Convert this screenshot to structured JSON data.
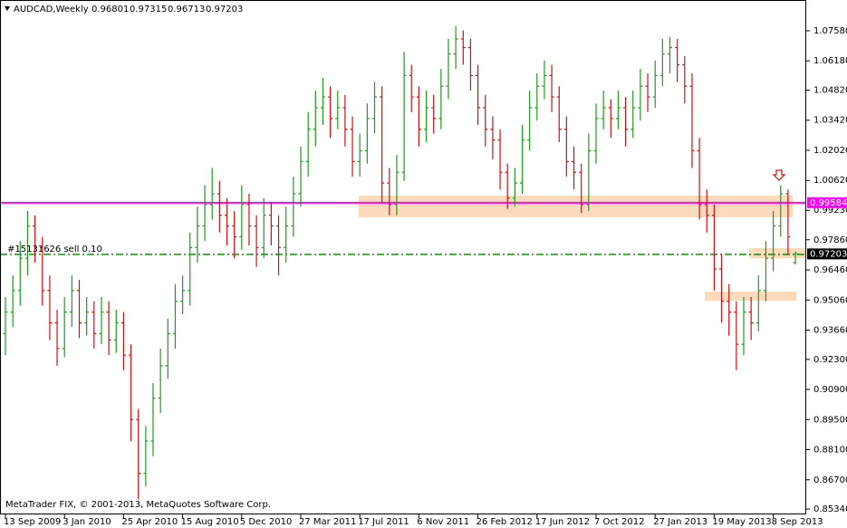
{
  "chart_data": {
    "type": "ohlc",
    "title": "AUDCAD,Weekly",
    "credit": "MetaTrader FIX, © 2001-2013, MetaQuotes Software Corp.",
    "categories": [
      "13 Sep 2009",
      null,
      null,
      null,
      null,
      null,
      null,
      null,
      "3 Jan 2010",
      null,
      null,
      null,
      null,
      null,
      null,
      null,
      "25 Apr 2010",
      null,
      null,
      null,
      null,
      null,
      null,
      null,
      "15 Aug 2010",
      null,
      null,
      null,
      null,
      null,
      null,
      null,
      "5 Dec 2010",
      null,
      null,
      null,
      null,
      null,
      null,
      null,
      "27 Mar 2011",
      null,
      null,
      null,
      null,
      null,
      null,
      null,
      "17 Jul 2011",
      null,
      null,
      null,
      null,
      null,
      null,
      null,
      "6 Nov 2011",
      null,
      null,
      null,
      null,
      null,
      null,
      null,
      "26 Feb 2012",
      null,
      null,
      null,
      null,
      null,
      null,
      null,
      "17 Jun 2012",
      null,
      null,
      null,
      null,
      null,
      null,
      null,
      "7 Oct 2012",
      null,
      null,
      null,
      null,
      null,
      null,
      null,
      "27 Jan 2013",
      null,
      null,
      null,
      null,
      null,
      null,
      null,
      "19 May 2013",
      null,
      null,
      null,
      null,
      null,
      null,
      null,
      "8 Sep 2013",
      null,
      null,
      null
    ],
    "open": [
      0.935,
      0.945,
      0.955,
      0.97,
      0.985,
      0.975,
      0.955,
      0.94,
      0.928,
      0.945,
      0.955,
      0.94,
      0.945,
      0.935,
      0.945,
      0.932,
      0.94,
      0.925,
      0.895,
      0.87,
      0.885,
      0.905,
      0.92,
      0.935,
      0.95,
      0.955,
      0.975,
      0.985,
      0.995,
      1.0,
      0.99,
      0.985,
      0.98,
      0.995,
      0.985,
      0.975,
      0.99,
      0.985,
      0.975,
      0.985,
      1.0,
      1.015,
      1.03,
      1.04,
      1.045,
      1.035,
      1.04,
      1.03,
      1.015,
      1.02,
      1.035,
      1.045,
      1.005,
      0.995,
      1.01,
      1.055,
      1.045,
      1.03,
      1.04,
      1.035,
      1.05,
      1.065,
      1.072,
      1.068,
      1.055,
      1.04,
      1.03,
      1.025,
      1.01,
      0.998,
      1.005,
      1.025,
      1.04,
      1.05,
      1.055,
      1.045,
      1.03,
      1.015,
      1.01,
      0.995,
      1.02,
      1.035,
      1.04,
      1.035,
      1.04,
      1.03,
      1.04,
      1.05,
      1.045,
      1.055,
      1.065,
      1.068,
      1.06,
      1.05,
      1.02,
      0.995,
      0.99,
      0.965,
      0.95,
      0.945,
      0.93,
      0.945,
      0.94,
      0.955,
      0.97,
      0.985,
      1.0,
      0.96801
    ],
    "high": [
      0.952,
      0.962,
      0.978,
      0.992,
      0.99,
      0.98,
      0.962,
      0.946,
      0.952,
      0.962,
      0.96,
      0.952,
      0.95,
      0.952,
      0.95,
      0.946,
      0.945,
      0.93,
      0.9,
      0.892,
      0.912,
      0.928,
      0.942,
      0.958,
      0.962,
      0.982,
      0.994,
      1.004,
      1.012,
      1.006,
      0.998,
      0.992,
      1.004,
      1.0,
      0.99,
      0.998,
      0.996,
      0.99,
      0.994,
      1.008,
      1.022,
      1.038,
      1.048,
      1.054,
      1.05,
      1.048,
      1.046,
      1.036,
      1.028,
      1.042,
      1.052,
      1.05,
      1.012,
      1.018,
      1.066,
      1.06,
      1.05,
      1.048,
      1.046,
      1.058,
      1.072,
      1.078,
      1.076,
      1.072,
      1.06,
      1.046,
      1.036,
      1.03,
      1.014,
      1.012,
      1.032,
      1.048,
      1.056,
      1.062,
      1.06,
      1.05,
      1.036,
      1.022,
      1.014,
      1.028,
      1.042,
      1.048,
      1.044,
      1.048,
      1.045,
      1.048,
      1.058,
      1.056,
      1.062,
      1.072,
      1.073,
      1.072,
      1.064,
      1.056,
      1.026,
      1.002,
      0.995,
      0.972,
      0.958,
      0.95,
      0.952,
      0.952,
      0.962,
      0.978,
      0.992,
      1.004,
      1.002,
      0.97315
    ],
    "low": [
      0.925,
      0.938,
      0.948,
      0.962,
      0.968,
      0.948,
      0.932,
      0.92,
      0.924,
      0.938,
      0.933,
      0.934,
      0.928,
      0.93,
      0.925,
      0.926,
      0.918,
      0.885,
      0.858,
      0.864,
      0.878,
      0.898,
      0.914,
      0.928,
      0.944,
      0.948,
      0.968,
      0.978,
      0.988,
      0.982,
      0.976,
      0.97,
      0.974,
      0.976,
      0.966,
      0.97,
      0.976,
      0.962,
      0.968,
      0.98,
      0.994,
      1.008,
      1.022,
      1.032,
      1.026,
      1.03,
      1.022,
      1.008,
      1.008,
      1.014,
      1.028,
      0.996,
      0.99,
      0.99,
      1.006,
      1.038,
      1.022,
      1.024,
      1.028,
      1.03,
      1.044,
      1.058,
      1.06,
      1.048,
      1.032,
      1.022,
      1.016,
      1.002,
      0.993,
      0.994,
      1.0,
      1.02,
      1.034,
      1.044,
      1.038,
      1.024,
      1.008,
      1.002,
      0.991,
      0.992,
      1.014,
      1.03,
      1.026,
      1.03,
      1.022,
      1.026,
      1.034,
      1.038,
      1.04,
      1.05,
      1.056,
      1.052,
      1.042,
      1.012,
      0.988,
      0.982,
      0.955,
      0.94,
      0.934,
      0.918,
      0.925,
      0.932,
      0.936,
      0.95,
      0.964,
      0.98,
      0.972,
      0.96713
    ],
    "close": [
      0.945,
      0.955,
      0.97,
      0.985,
      0.975,
      0.955,
      0.94,
      0.928,
      0.945,
      0.955,
      0.94,
      0.945,
      0.935,
      0.945,
      0.932,
      0.94,
      0.925,
      0.895,
      0.87,
      0.885,
      0.905,
      0.92,
      0.935,
      0.95,
      0.955,
      0.975,
      0.985,
      0.995,
      1.0,
      0.99,
      0.985,
      0.98,
      0.995,
      0.985,
      0.975,
      0.99,
      0.985,
      0.975,
      0.985,
      1.0,
      1.015,
      1.03,
      1.04,
      1.045,
      1.035,
      1.04,
      1.03,
      1.015,
      1.02,
      1.035,
      1.045,
      1.005,
      0.995,
      1.01,
      1.055,
      1.045,
      1.03,
      1.04,
      1.035,
      1.05,
      1.065,
      1.072,
      1.068,
      1.055,
      1.04,
      1.03,
      1.025,
      1.01,
      0.998,
      1.005,
      1.025,
      1.04,
      1.05,
      1.055,
      1.045,
      1.03,
      1.015,
      1.01,
      0.995,
      1.02,
      1.035,
      1.04,
      1.035,
      1.04,
      1.03,
      1.04,
      1.05,
      1.045,
      1.055,
      1.065,
      1.068,
      1.06,
      1.05,
      1.02,
      0.995,
      0.99,
      0.965,
      0.95,
      0.945,
      0.93,
      0.945,
      0.94,
      0.955,
      0.97,
      0.985,
      1.0,
      0.98,
      0.97203
    ],
    "up_color": "#1f9a1f",
    "down_color": "#d01010",
    "ylim": [
      0.8509,
      1.0901
    ],
    "yticks": [
      {
        "value": 1.0758,
        "label": "1.07580"
      },
      {
        "value": 1.0618,
        "label": "1.06180"
      },
      {
        "value": 1.0482,
        "label": "1.04820"
      },
      {
        "value": 1.0342,
        "label": "1.03420"
      },
      {
        "value": 1.0202,
        "label": "1.02020"
      },
      {
        "value": 1.0062,
        "label": "1.00620"
      },
      {
        "value": 0.9923,
        "label": "0.99230"
      },
      {
        "value": 0.9786,
        "label": "0.97860"
      },
      {
        "value": 0.9646,
        "label": "0.96460"
      },
      {
        "value": 0.9506,
        "label": "0.95060"
      },
      {
        "value": 0.9366,
        "label": "0.93660"
      },
      {
        "value": 0.923,
        "label": "0.92300"
      },
      {
        "value": 0.909,
        "label": "0.90900"
      },
      {
        "value": 0.895,
        "label": "0.89500"
      },
      {
        "value": 0.881,
        "label": "0.88100"
      },
      {
        "value": 0.867,
        "label": "0.86700"
      },
      {
        "value": 0.8534,
        "label": "0.85340"
      }
    ],
    "hline": {
      "value": 0.99584,
      "color": "#ff00ff"
    },
    "order": {
      "label": "#15131626 sell 0.10",
      "price": 0.9718,
      "color": "#008000"
    }
  }
}
